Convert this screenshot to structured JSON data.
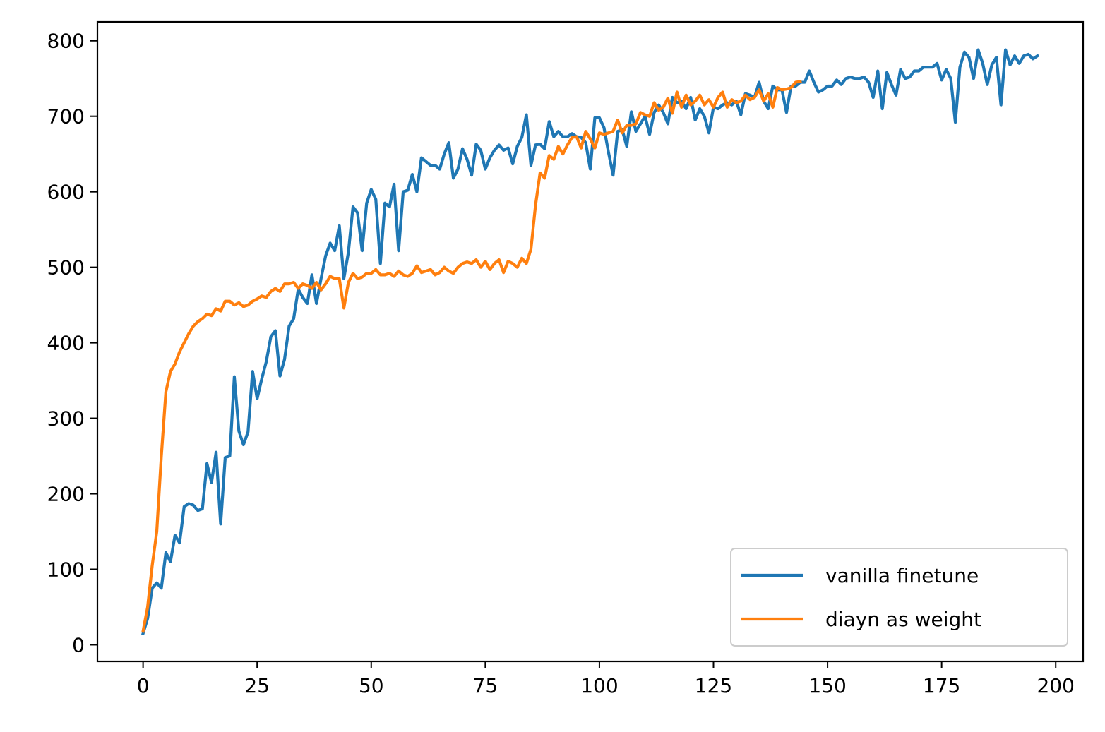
{
  "chart_data": {
    "type": "line",
    "title": "",
    "xlabel": "",
    "ylabel": "",
    "xlim": [
      -10,
      206
    ],
    "ylim": [
      -22,
      825
    ],
    "xticks": [
      0,
      25,
      50,
      75,
      100,
      125,
      150,
      175,
      200
    ],
    "yticks": [
      0,
      100,
      200,
      300,
      400,
      500,
      600,
      700,
      800
    ],
    "xtick_labels": [
      "0",
      "25",
      "50",
      "75",
      "100",
      "125",
      "150",
      "175",
      "200"
    ],
    "ytick_labels": [
      "0",
      "100",
      "200",
      "300",
      "400",
      "500",
      "600",
      "700",
      "800"
    ],
    "grid": false,
    "legend_position": "lower right",
    "series": [
      {
        "name": "vanilla finetune",
        "color": "#1f77b4",
        "x": [
          0,
          1,
          2,
          3,
          4,
          5,
          6,
          7,
          8,
          9,
          10,
          11,
          12,
          13,
          14,
          15,
          16,
          17,
          18,
          19,
          20,
          21,
          22,
          23,
          24,
          25,
          26,
          27,
          28,
          29,
          30,
          31,
          32,
          33,
          34,
          35,
          36,
          37,
          38,
          39,
          40,
          41,
          42,
          43,
          44,
          45,
          46,
          47,
          48,
          49,
          50,
          51,
          52,
          53,
          54,
          55,
          56,
          57,
          58,
          59,
          60,
          61,
          62,
          63,
          64,
          65,
          66,
          67,
          68,
          69,
          70,
          71,
          72,
          73,
          74,
          75,
          76,
          77,
          78,
          79,
          80,
          81,
          82,
          83,
          84,
          85,
          86,
          87,
          88,
          89,
          90,
          91,
          92,
          93,
          94,
          95,
          96,
          97,
          98,
          99,
          100,
          101,
          102,
          103,
          104,
          105,
          106,
          107,
          108,
          109,
          110,
          111,
          112,
          113,
          114,
          115,
          116,
          117,
          118,
          119,
          120,
          121,
          122,
          123,
          124,
          125,
          126,
          127,
          128,
          129,
          130,
          131,
          132,
          133,
          134,
          135,
          136,
          137,
          138,
          139,
          140,
          141,
          142,
          143,
          144,
          145,
          146,
          147,
          148,
          149,
          150,
          151,
          152,
          153,
          154,
          155,
          156,
          157,
          158,
          159,
          160,
          161,
          162,
          163,
          164,
          165,
          166,
          167,
          168,
          169,
          170,
          171,
          172,
          173,
          174,
          175,
          176,
          177,
          178,
          179,
          180,
          181,
          182,
          183,
          184,
          185,
          186,
          187,
          188,
          189,
          190,
          191,
          192,
          193,
          194,
          195,
          196
        ],
        "values": [
          15,
          35,
          75,
          82,
          75,
          122,
          110,
          145,
          135,
          183,
          187,
          185,
          178,
          180,
          240,
          215,
          255,
          160,
          248,
          250,
          355,
          283,
          265,
          282,
          362,
          326,
          352,
          375,
          408,
          416,
          356,
          378,
          422,
          432,
          471,
          460,
          452,
          490,
          452,
          485,
          515,
          532,
          522,
          555,
          485,
          520,
          580,
          572,
          522,
          585,
          603,
          590,
          505,
          585,
          580,
          610,
          522,
          600,
          602,
          623,
          600,
          645,
          640,
          635,
          635,
          630,
          650,
          665,
          618,
          630,
          657,
          643,
          622,
          663,
          655,
          630,
          645,
          655,
          662,
          655,
          658,
          637,
          660,
          672,
          702,
          635,
          662,
          663,
          657,
          693,
          673,
          680,
          673,
          673,
          677,
          673,
          672,
          665,
          630,
          698,
          698,
          685,
          652,
          622,
          680,
          682,
          660,
          706,
          680,
          690,
          700,
          676,
          705,
          715,
          705,
          690,
          725,
          718,
          720,
          710,
          725,
          695,
          710,
          700,
          678,
          712,
          710,
          715,
          718,
          715,
          720,
          702,
          730,
          728,
          725,
          745,
          720,
          710,
          740,
          735,
          735,
          705,
          740,
          740,
          745,
          745,
          760,
          745,
          732,
          735,
          740,
          740,
          748,
          742,
          750,
          752,
          750,
          750,
          752,
          745,
          725,
          760,
          710,
          758,
          742,
          728,
          762,
          750,
          752,
          760,
          760,
          765,
          765,
          765,
          770,
          748,
          762,
          750,
          692,
          765,
          785,
          778,
          750,
          788,
          770,
          742,
          768,
          778,
          715,
          788,
          768,
          780,
          770,
          780,
          782,
          776,
          780
        ]
      },
      {
        "name": "diayn as weight",
        "color": "#ff7f0e",
        "x": [
          0,
          1,
          2,
          3,
          4,
          5,
          6,
          7,
          8,
          9,
          10,
          11,
          12,
          13,
          14,
          15,
          16,
          17,
          18,
          19,
          20,
          21,
          22,
          23,
          24,
          25,
          26,
          27,
          28,
          29,
          30,
          31,
          32,
          33,
          34,
          35,
          36,
          37,
          38,
          39,
          40,
          41,
          42,
          43,
          44,
          45,
          46,
          47,
          48,
          49,
          50,
          51,
          52,
          53,
          54,
          55,
          56,
          57,
          58,
          59,
          60,
          61,
          62,
          63,
          64,
          65,
          66,
          67,
          68,
          69,
          70,
          71,
          72,
          73,
          74,
          75,
          76,
          77,
          78,
          79,
          80,
          81,
          82,
          83,
          84,
          85,
          86,
          87,
          88,
          89,
          90,
          91,
          92,
          93,
          94,
          95,
          96,
          97,
          98,
          99,
          100,
          101,
          102,
          103,
          104,
          105,
          106,
          107,
          108,
          109,
          110,
          111,
          112,
          113,
          114,
          115,
          116,
          117,
          118,
          119,
          120,
          121,
          122,
          123,
          124,
          125,
          126,
          127,
          128,
          129,
          130,
          131,
          132,
          133,
          134,
          135,
          136,
          137,
          138,
          139,
          140,
          141,
          142,
          143,
          144
        ],
        "values": [
          18,
          50,
          105,
          150,
          250,
          335,
          362,
          372,
          388,
          400,
          412,
          422,
          428,
          432,
          438,
          436,
          445,
          442,
          455,
          455,
          450,
          453,
          448,
          450,
          455,
          458,
          462,
          460,
          468,
          472,
          468,
          478,
          478,
          480,
          472,
          478,
          476,
          472,
          480,
          470,
          478,
          488,
          485,
          485,
          446,
          480,
          492,
          485,
          487,
          492,
          492,
          497,
          490,
          490,
          492,
          488,
          495,
          490,
          488,
          492,
          502,
          493,
          495,
          497,
          490,
          493,
          500,
          495,
          492,
          500,
          505,
          507,
          505,
          510,
          500,
          508,
          497,
          505,
          510,
          493,
          508,
          505,
          500,
          512,
          505,
          524,
          582,
          625,
          618,
          648,
          643,
          660,
          650,
          662,
          672,
          673,
          658,
          680,
          670,
          658,
          678,
          676,
          678,
          680,
          695,
          678,
          688,
          688,
          690,
          705,
          702,
          700,
          718,
          708,
          712,
          724,
          704,
          732,
          712,
          728,
          715,
          720,
          728,
          715,
          722,
          712,
          725,
          732,
          712,
          722,
          718,
          720,
          728,
          722,
          725,
          735,
          720,
          730,
          712,
          738,
          735,
          736,
          738,
          745,
          746
        ]
      }
    ]
  }
}
